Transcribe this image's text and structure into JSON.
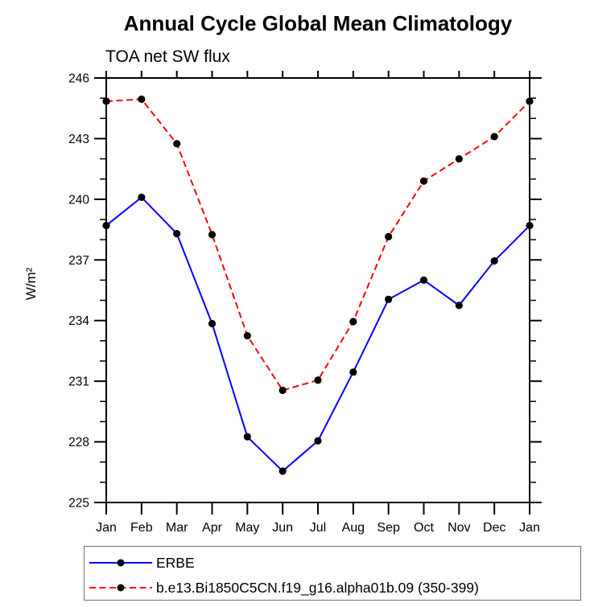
{
  "chart_data": {
    "type": "line",
    "title": "Annual Cycle Global Mean Climatology",
    "subtitle": "TOA net SW flux",
    "ylabel": "W/m²",
    "xlabel": "",
    "categories": [
      "Jan",
      "Feb",
      "Mar",
      "Apr",
      "May",
      "Jun",
      "Jul",
      "Aug",
      "Sep",
      "Oct",
      "Nov",
      "Dec",
      "Jan"
    ],
    "ylim": [
      225,
      246
    ],
    "y_major_step": 3,
    "y_minor_step": 1,
    "grid": "off",
    "legend_position": "bottom-left-box",
    "frame_color": "#000000",
    "marker": "filled-circle",
    "marker_color": "#000000",
    "series": [
      {
        "name": "ERBE",
        "color": "#0000ff",
        "line_style": "solid",
        "values": [
          238.7,
          240.1,
          238.3,
          233.85,
          228.25,
          226.55,
          228.05,
          231.45,
          235.05,
          236.0,
          234.75,
          236.95,
          238.7
        ]
      },
      {
        "name": "b.e13.Bi1850C5CN.f19_g16.alpha01b.09 (350-399)",
        "color": "#ff0000",
        "line_style": "dashed",
        "values": [
          244.85,
          244.95,
          242.75,
          238.25,
          233.25,
          230.55,
          231.05,
          233.95,
          238.15,
          240.9,
          242.0,
          243.1,
          244.85
        ]
      }
    ]
  }
}
